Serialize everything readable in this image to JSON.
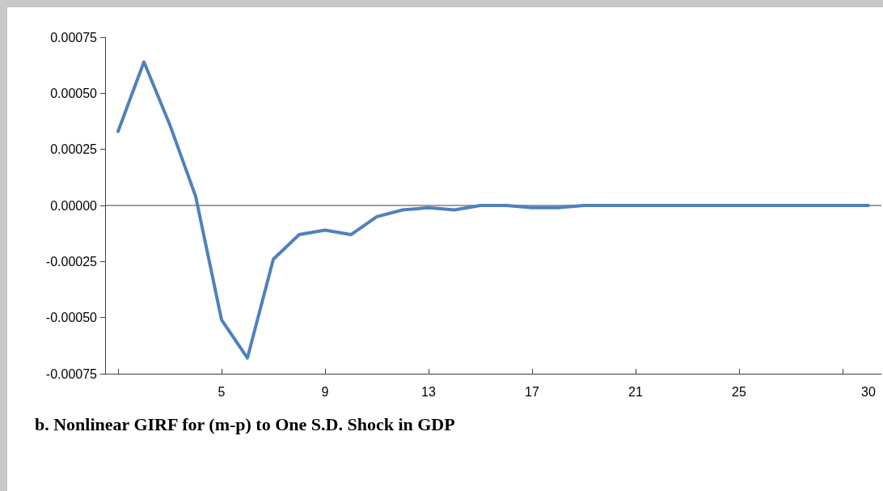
{
  "chart_data": {
    "type": "line",
    "title": "b. Nonlinear GIRF for (m-p) to One S.D. Shock in GDP",
    "categories": [
      null,
      null,
      null,
      null,
      "5",
      null,
      null,
      null,
      "9",
      null,
      null,
      null,
      "13",
      null,
      null,
      null,
      "17",
      null,
      null,
      null,
      "21",
      null,
      null,
      null,
      "25",
      null,
      null,
      null,
      null,
      "30"
    ],
    "series": [
      {
        "color": "#4f81bd",
        "values": [
          0.00033,
          0.00064,
          0.00036,
          4e-05,
          -0.00051,
          -0.00068,
          -0.00024,
          -0.00013,
          -0.00011,
          -0.00013,
          -5e-05,
          -2e-05,
          -1e-05,
          -2e-05,
          0,
          0,
          -1e-05,
          -1e-05,
          0,
          0,
          0,
          0,
          0,
          0,
          0,
          0,
          0,
          0,
          0,
          0
        ]
      }
    ],
    "ylim": [
      -0.00075,
      0.00075
    ],
    "yticks": [
      {
        "value": -0.00075,
        "label": "-0.00075"
      },
      {
        "value": -0.0005,
        "label": "-0.00050"
      },
      {
        "value": -0.00025,
        "label": "-0.00025"
      },
      {
        "value": 0,
        "label": "0.00000"
      },
      {
        "value": 0.00025,
        "label": "0.00025"
      },
      {
        "value": 0.0005,
        "label": "0.00050"
      },
      {
        "value": 0.00075,
        "label": "0.00075"
      }
    ],
    "ref_lines": [
      {
        "axis": "y",
        "value": 0,
        "color": "#404040"
      }
    ],
    "grid": false,
    "marker": "none",
    "line_style": "solid"
  }
}
